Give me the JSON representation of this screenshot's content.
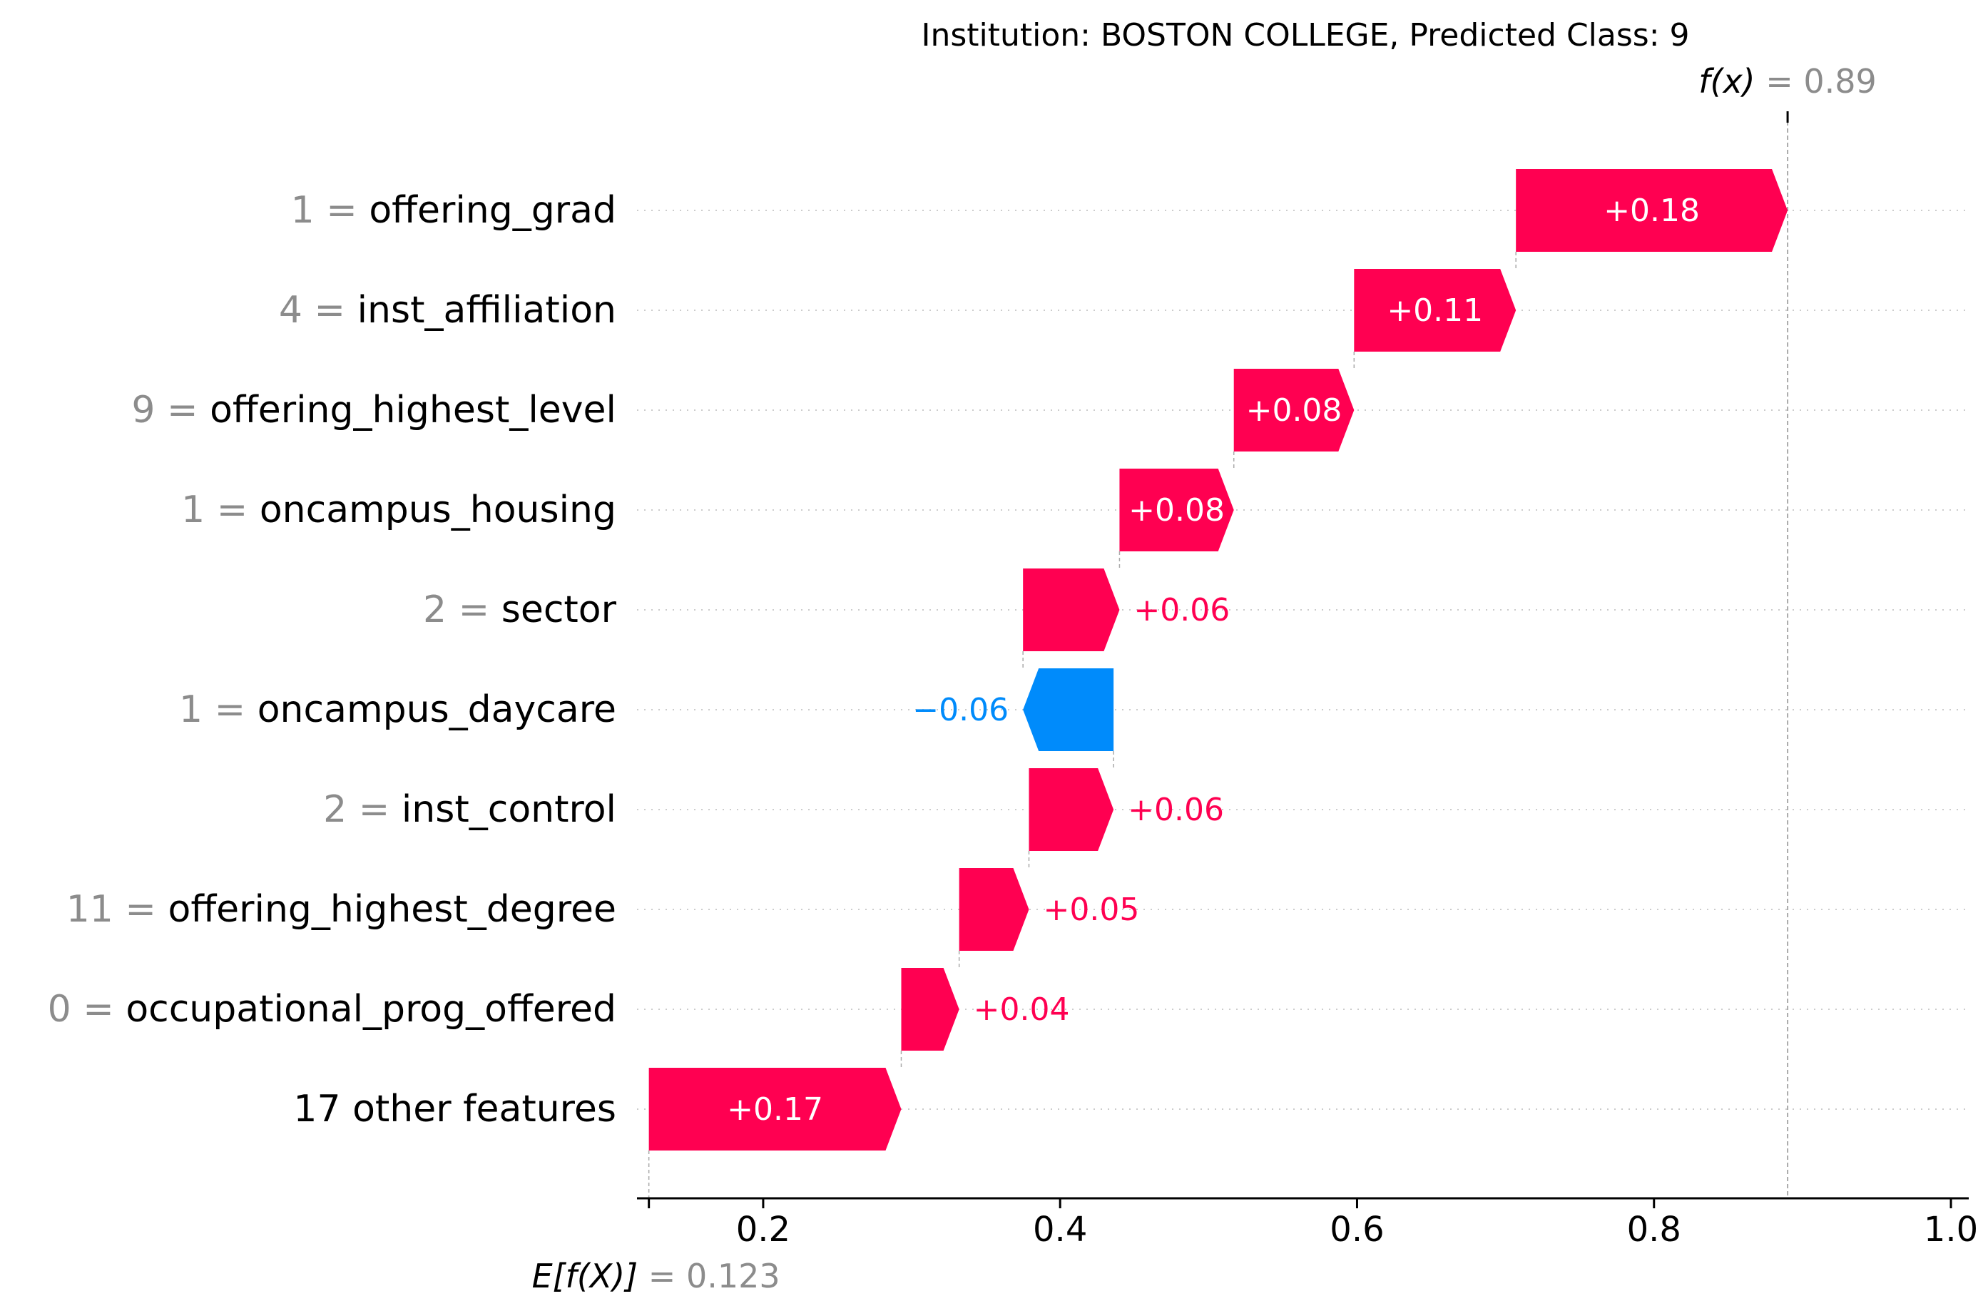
{
  "chart_data": {
    "type": "waterfall",
    "title": "Institution: BOSTON COLLEGE, Predicted Class: 9",
    "fx": {
      "label": "f(x)",
      "eq": " = ",
      "value": "0.89",
      "num": 0.89
    },
    "efx": {
      "label": "E[f(X)]",
      "eq": " = ",
      "value": "0.123",
      "num": 0.123
    },
    "xlim": [
      0.115,
      1.012
    ],
    "xticks": [
      {
        "value": 0.2,
        "label": "0.2"
      },
      {
        "value": 0.4,
        "label": "0.4"
      },
      {
        "value": 0.6,
        "label": "0.6"
      },
      {
        "value": 0.8,
        "label": "0.8"
      },
      {
        "value": 1.0,
        "label": "1.0"
      }
    ],
    "colors": {
      "positive": "#ff0051",
      "negative": "#008bfb",
      "grid": "#cccccc",
      "feature_value": "#8c8c8c"
    },
    "features": [
      {
        "value_text": "1",
        "name": "offering_grad",
        "start": 0.707,
        "end": 0.89,
        "delta": 0.18,
        "label": "+0.18"
      },
      {
        "value_text": "4",
        "name": "inst_affiliation",
        "start": 0.598,
        "end": 0.707,
        "delta": 0.11,
        "label": "+0.11"
      },
      {
        "value_text": "9",
        "name": "offering_highest_level",
        "start": 0.517,
        "end": 0.598,
        "delta": 0.08,
        "label": "+0.08"
      },
      {
        "value_text": "1",
        "name": "oncampus_housing",
        "start": 0.44,
        "end": 0.517,
        "delta": 0.08,
        "label": "+0.08"
      },
      {
        "value_text": "2",
        "name": "sector",
        "start": 0.375,
        "end": 0.44,
        "delta": 0.06,
        "label": "+0.06"
      },
      {
        "value_text": "1",
        "name": "oncampus_daycare",
        "start": 0.436,
        "end": 0.375,
        "delta": -0.06,
        "label": "−0.06"
      },
      {
        "value_text": "2",
        "name": "inst_control",
        "start": 0.379,
        "end": 0.436,
        "delta": 0.06,
        "label": "+0.06"
      },
      {
        "value_text": "11",
        "name": "offering_highest_degree",
        "start": 0.332,
        "end": 0.379,
        "delta": 0.05,
        "label": "+0.05"
      },
      {
        "value_text": "0",
        "name": "occupational_prog_offered",
        "start": 0.293,
        "end": 0.332,
        "delta": 0.04,
        "label": "+0.04"
      },
      {
        "value_text": "",
        "name": "17 other features",
        "start": 0.123,
        "end": 0.293,
        "delta": 0.17,
        "label": "+0.17"
      }
    ]
  }
}
